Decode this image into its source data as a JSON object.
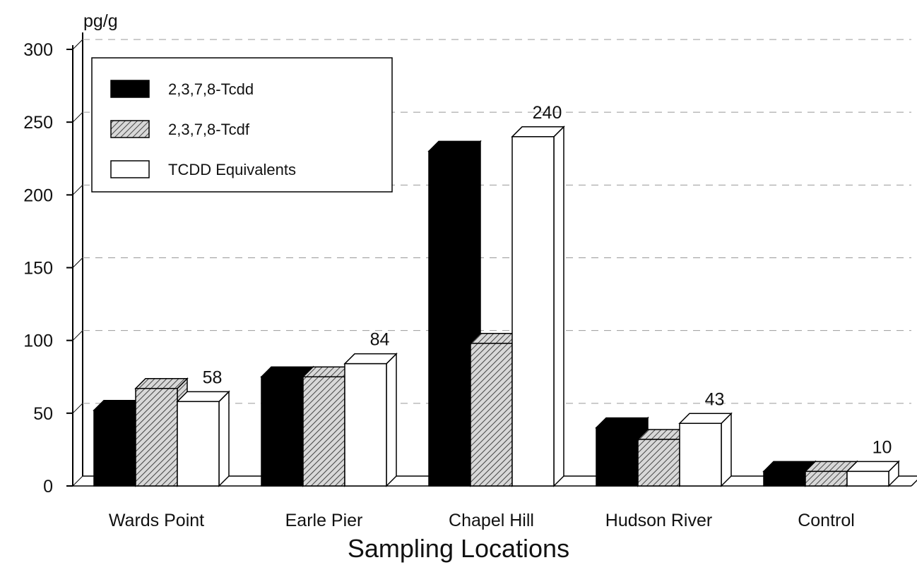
{
  "chart_data": {
    "type": "bar3d",
    "y_label": "pg/g",
    "x_label": "Sampling Locations",
    "categories": [
      "Wards Point",
      "Earle Pier",
      "Chapel Hill",
      "Hudson River",
      "Control"
    ],
    "series": [
      {
        "name": "2,3,7,8-Tcdd",
        "color": "#000000",
        "values": [
          52,
          75,
          230,
          40,
          10
        ]
      },
      {
        "name": "2,3,7,8-Tcdf",
        "color": "#9a9a9a",
        "pattern": "hatch",
        "values": [
          67,
          75,
          98,
          32,
          10
        ]
      },
      {
        "name": "TCDD Equivalents",
        "color": "#ffffff",
        "show_labels": true,
        "values": [
          58,
          84,
          240,
          43,
          10
        ]
      }
    ],
    "ylim": [
      0,
      300
    ],
    "yticks": [
      0,
      50,
      100,
      150,
      200,
      250,
      300
    ],
    "grid": true,
    "legend": "upper left"
  }
}
